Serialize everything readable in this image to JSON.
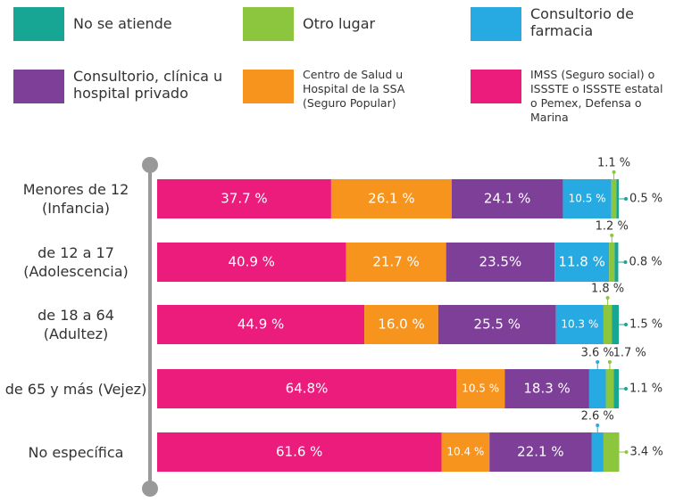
{
  "chart_data": {
    "type": "stacked_bar_horizontal",
    "categories": [
      "Menores de 12 (Infancia)",
      "de 12 a 17 (Adolescencia)",
      "de 18 a 64 (Adultez)",
      "de 65 y más (Vejez)",
      "No específica"
    ],
    "xlim": [
      0,
      100
    ],
    "legend": "top",
    "series": [
      {
        "name": "IMSS (Seguro social) o ISSSTE o ISSSTE estatal o Pemex, Defensa o Marina",
        "color": "#ec1c7d",
        "values": [
          37.7,
          40.9,
          44.9,
          64.8,
          61.6
        ],
        "value_labels": [
          "37.7 %",
          "40.9 %",
          "44.9 %",
          "64.8%",
          "61.6 %"
        ]
      },
      {
        "name": "Centro de Salud u Hospital de la SSA (Seguro Popular)",
        "color": "#f7941d",
        "values": [
          26.1,
          21.7,
          16.0,
          10.5,
          10.4
        ],
        "value_labels": [
          "26.1 %",
          "21.7 %",
          "16.0 %",
          "10.5 %",
          "10.4 %"
        ]
      },
      {
        "name": "Consultorio, clínica u hospital privado",
        "color": "#7d3f98",
        "values": [
          24.1,
          23.5,
          25.5,
          18.3,
          22.1
        ],
        "value_labels": [
          "24.1 %",
          "23.5%",
          "25.5 %",
          "18.3 %",
          "22.1 %"
        ]
      },
      {
        "name": "Consultorio de farmacia",
        "color": "#27aae1",
        "values": [
          10.5,
          11.8,
          10.3,
          3.6,
          2.6
        ],
        "value_labels": [
          "10.5 %",
          "11.8 %",
          "10.3 %",
          "3.6 %",
          "2.6 %"
        ]
      },
      {
        "name": "Otro lugar",
        "color": "#8cc63f",
        "values": [
          1.1,
          1.2,
          1.8,
          1.7,
          3.4
        ],
        "value_labels": [
          "1.1 %",
          "1.2 %",
          "1.8 %",
          "1.7 %",
          "3.4 %"
        ]
      },
      {
        "name": "No se atiende",
        "color": "#17a693",
        "values": [
          0.5,
          0.8,
          1.5,
          1.1,
          null
        ],
        "value_labels": [
          "0.5 %",
          "0.8 %",
          "1.5 %",
          "1.1 %",
          null
        ]
      }
    ]
  }
}
